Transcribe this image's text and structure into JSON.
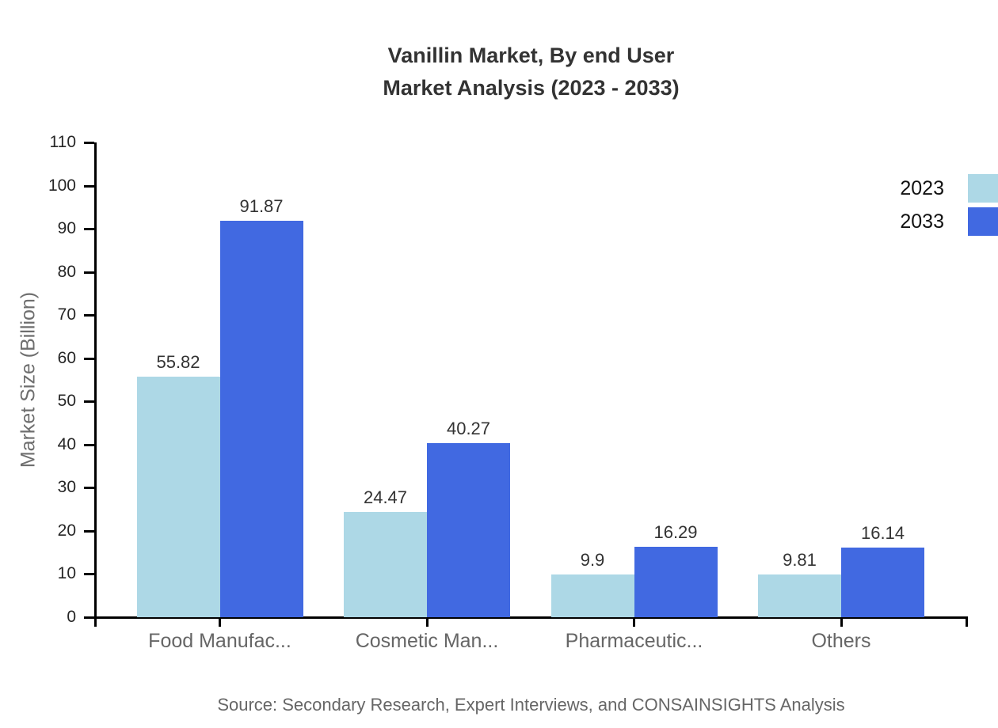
{
  "title": {
    "line1": "Vanillin Market, By end User",
    "line2": "Market Analysis (2023 - 2033)"
  },
  "source": "Source: Secondary Research, Expert Interviews, and CONSAINSIGHTS Analysis",
  "chart_data": {
    "type": "bar",
    "title": "Vanillin Market, By end User Market Analysis (2023 - 2033)",
    "categories": [
      "Food Manufac...",
      "Cosmetic Man...",
      "Pharmaceutic...",
      "Others"
    ],
    "series": [
      {
        "name": "2023",
        "color": "#ADD8E6",
        "values": [
          55.82,
          24.47,
          9.9,
          9.81
        ]
      },
      {
        "name": "2033",
        "color": "#4169E1",
        "values": [
          91.87,
          40.27,
          16.29,
          16.14
        ]
      }
    ],
    "xlabel": "",
    "ylabel": "Market Size (Billion)",
    "ylim": [
      0,
      110
    ],
    "ytick_step": 10,
    "ytick_labels": [
      "0",
      "10",
      "20",
      "30",
      "40",
      "50",
      "60",
      "70",
      "80",
      "90",
      "100",
      "110"
    ],
    "grid": false,
    "legend_position": "top-right",
    "value_labels_shown": true,
    "value_labels": [
      "55.82",
      "91.87",
      "24.47",
      "40.27",
      "9.9",
      "16.29",
      "9.81",
      "16.14"
    ]
  },
  "colors": {
    "series_2023": "#ADD8E6",
    "series_2033": "#4169E1",
    "axis": "#000000",
    "title_text": "#333333",
    "tick_text": "#262626",
    "category_text": "#666666",
    "y_axis_title_text": "#6e6e6e",
    "source_text": "#666666",
    "background": "#ffffff"
  }
}
